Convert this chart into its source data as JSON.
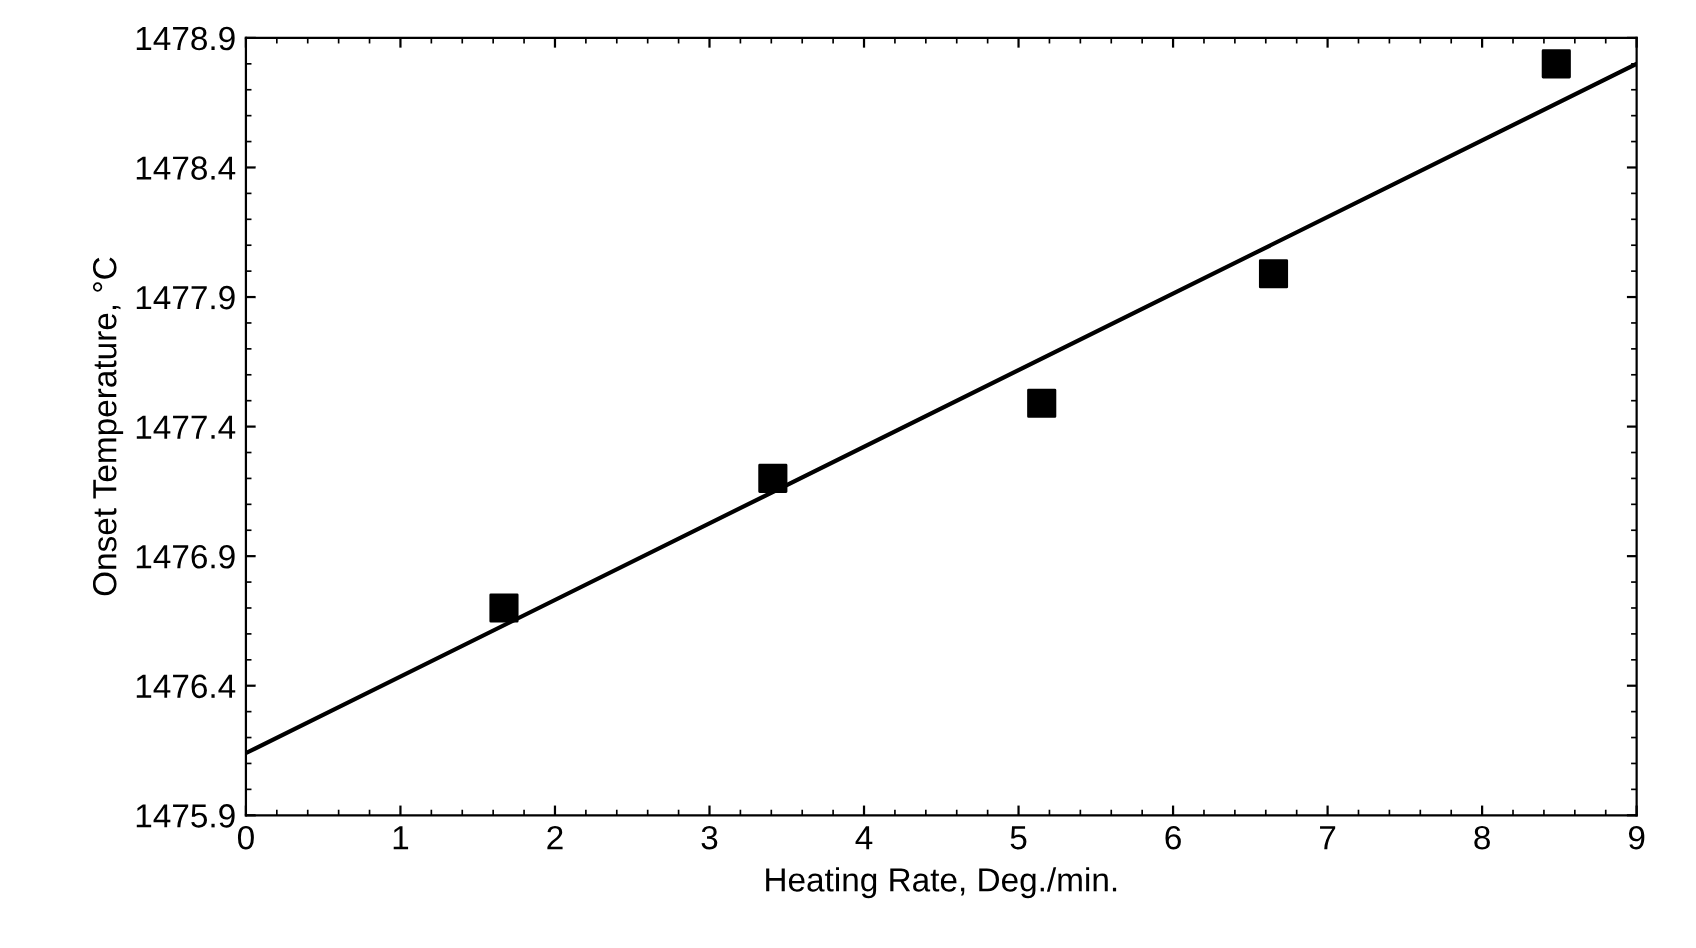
{
  "chart_data": {
    "type": "scatter",
    "xlabel": "Heating Rate, Deg./min.",
    "ylabel": "Onset Temperature, °C",
    "series": [
      {
        "color": "#000000",
        "marker": "square",
        "x": [
          1.67,
          3.41,
          5.15,
          6.65,
          8.48
        ],
        "values": [
          1476.7,
          1477.2,
          1477.49,
          1477.99,
          1478.8
        ]
      },
      {
        "type": "line",
        "color": "#000000",
        "marker": "none",
        "x": [
          0,
          9
        ],
        "values": [
          1476.14,
          1478.8
        ]
      }
    ],
    "xlim": [
      0,
      9
    ],
    "ylim": [
      1475.9,
      1478.9
    ],
    "xticks": [
      0,
      1,
      2,
      3,
      4,
      5,
      6,
      7,
      8,
      9
    ],
    "yticks": [
      1475.9,
      1476.4,
      1476.9,
      1477.4,
      1477.9,
      1478.4,
      1478.9
    ],
    "grid": false,
    "legend": false
  }
}
